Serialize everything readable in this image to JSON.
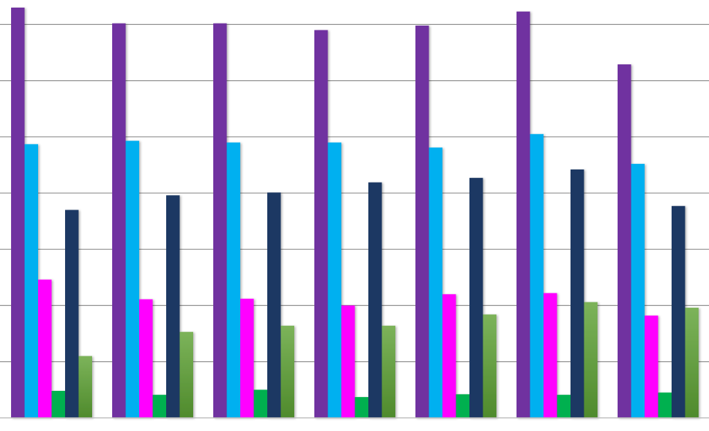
{
  "chart_data": {
    "type": "bar",
    "title": "",
    "xlabel": "",
    "ylabel": "",
    "categories": [
      "",
      "",
      "",
      "",
      "",
      "",
      ""
    ],
    "ylim": [
      0,
      7.3
    ],
    "grid": true,
    "legend": "none",
    "series": [
      {
        "color": "#7030a0",
        "values": [
          7.3,
          7.02,
          7.02,
          6.9,
          6.98,
          7.23,
          6.29
        ]
      },
      {
        "color": "#00b0f0",
        "values": [
          4.87,
          4.93,
          4.9,
          4.9,
          4.81,
          5.05,
          4.52
        ]
      },
      {
        "color": "#ff00ff",
        "values": [
          2.46,
          2.11,
          2.12,
          2.0,
          2.2,
          2.22,
          1.82
        ]
      },
      {
        "color": "#00b050",
        "values": [
          0.48,
          0.41,
          0.5,
          0.37,
          0.42,
          0.41,
          0.45
        ]
      },
      {
        "color": "#1f3864",
        "values": [
          3.7,
          3.96,
          4.01,
          4.19,
          4.27,
          4.42,
          3.77
        ]
      },
      {
        "color": "#70ad47",
        "values": [
          1.1,
          1.53,
          1.64,
          1.64,
          1.84,
          2.06,
          1.96
        ]
      }
    ]
  }
}
